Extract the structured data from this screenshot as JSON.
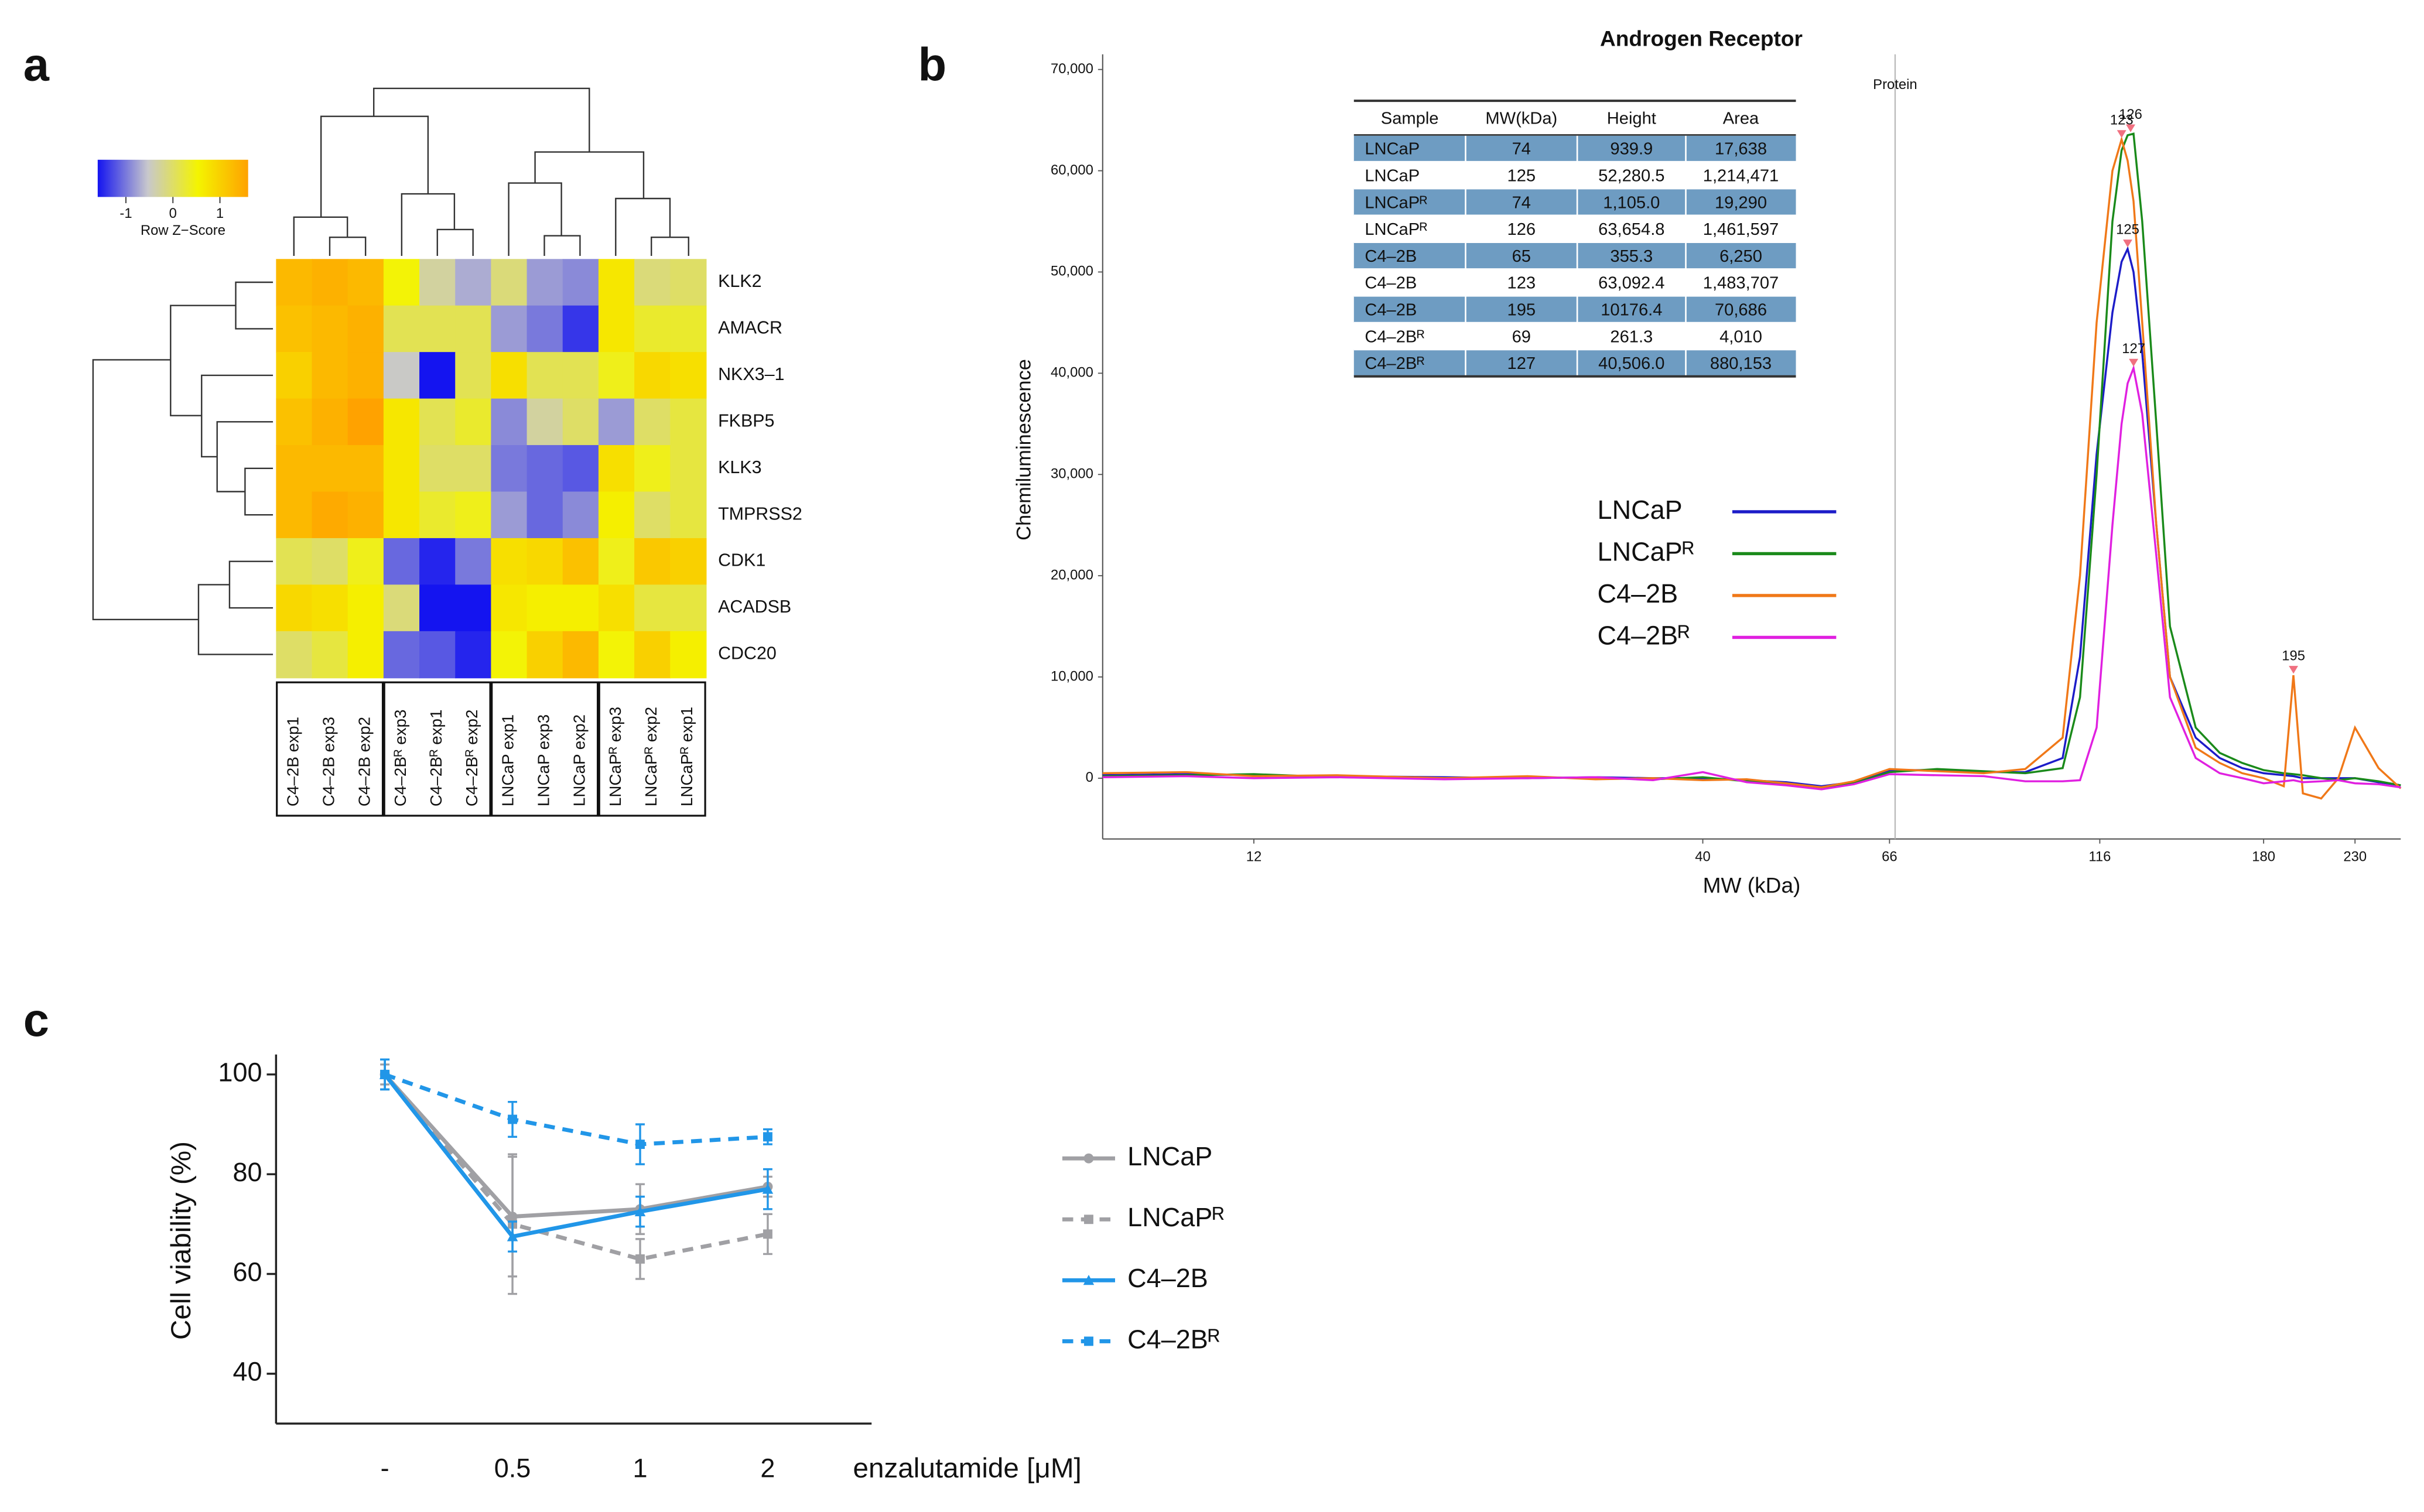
{
  "chart_data": [
    {
      "type": "heatmap",
      "panel": "a",
      "rows": [
        "KLK2",
        "AMACR",
        "NKX3–1",
        "FKBP5",
        "KLK3",
        "TMPRSS2",
        "CDK1",
        "ACADSB",
        "CDC20"
      ],
      "columns": [
        "C4–2B exp1",
        "C4–2B exp3",
        "C4–2B exp2",
        "C4–2Bᴿ exp3",
        "C4–2Bᴿ exp1",
        "C4–2Bᴿ exp2",
        "LNCaP exp1",
        "LNCaP exp3",
        "LNCaP exp2",
        "LNCaPᴿ exp3",
        "LNCaPᴿ exp2",
        "LNCaPᴿ exp1"
      ],
      "values": [
        [
          1.3,
          1.4,
          1.3,
          0.5,
          -0.3,
          -0.7,
          -0.1,
          -0.8,
          -0.9,
          0.7,
          -0.1,
          0
        ],
        [
          1.2,
          1.3,
          1.4,
          0.1,
          0.1,
          0.1,
          -0.8,
          -1.0,
          -1.4,
          0.7,
          0.3,
          0.3
        ],
        [
          1.0,
          1.3,
          1.4,
          -0.5,
          -1.6,
          0.1,
          0.8,
          0.1,
          0.1,
          0.4,
          0.9,
          0.8
        ],
        [
          1.2,
          1.4,
          1.6,
          0.7,
          0.1,
          0.3,
          -0.9,
          -0.3,
          0,
          -0.8,
          0,
          0.2
        ],
        [
          1.3,
          1.3,
          1.3,
          0.7,
          0,
          0,
          -1.0,
          -1.1,
          -1.2,
          0.8,
          0.4,
          0.2
        ],
        [
          1.3,
          1.5,
          1.4,
          0.7,
          0.3,
          0.4,
          -0.8,
          -1.1,
          -0.9,
          0.6,
          0,
          0.2
        ],
        [
          0.1,
          0,
          0.4,
          -1.1,
          -1.5,
          -1.0,
          0.8,
          0.9,
          1.2,
          0.4,
          1.1,
          1.0
        ],
        [
          0.9,
          0.8,
          0.6,
          -0.1,
          -1.7,
          -1.6,
          0.7,
          0.6,
          0.6,
          0.8,
          0.2,
          0.2
        ],
        [
          0,
          0.2,
          0.6,
          -1.1,
          -1.2,
          -1.5,
          0.5,
          1.0,
          1.3,
          0.5,
          1.0,
          0.6
        ]
      ],
      "zlim": [
        -1.6,
        1.6
      ],
      "colors": [
        "#1414f0",
        "#c8c8cc",
        "#f4f400",
        "#ffa200"
      ],
      "colorbar_title": "Row Z−Score",
      "colorbar_ticks": [
        -1,
        0,
        1
      ]
    },
    {
      "type": "line",
      "panel": "b",
      "title": "Androgen Receptor",
      "xlabel": "MW (kDa)",
      "ylabel": "Chemiluminescence",
      "xscale": "log",
      "xlim": [
        8,
        260
      ],
      "xticks": [
        12,
        40,
        66,
        116,
        180,
        230
      ],
      "ylim": [
        -6000,
        71500
      ],
      "yticks": [
        0,
        {
          "value": 10000,
          "label": "10,000"
        },
        {
          "value": 20000,
          "label": "20,000"
        },
        {
          "value": 30000,
          "label": "30,000"
        },
        {
          "value": 40000,
          "label": "40,000"
        },
        {
          "value": 50000,
          "label": "50,000"
        },
        {
          "value": 60000,
          "label": "60,000"
        },
        {
          "value": 70000,
          "label": "70,000"
        }
      ],
      "x": [
        8,
        10,
        12,
        15,
        20,
        25,
        30,
        35,
        40,
        45,
        50,
        55,
        60,
        66,
        75,
        85,
        95,
        105,
        110,
        115,
        120,
        123,
        125,
        127,
        130,
        135,
        140,
        150,
        160,
        170,
        180,
        190,
        195,
        200,
        210,
        220,
        230,
        245,
        260
      ],
      "series": [
        {
          "name": "LNCaP",
          "color": "#1c1cc8",
          "values": [
            300,
            400,
            300,
            200,
            100,
            0,
            100,
            0,
            0,
            -200,
            -400,
            -800,
            -400,
            800,
            800,
            600,
            600,
            2000,
            12000,
            32000,
            46000,
            51000,
            52280,
            50000,
            42000,
            25000,
            10000,
            4000,
            2000,
            1000,
            500,
            300,
            200,
            0,
            0,
            0,
            0,
            -400,
            -700
          ]
        },
        {
          "name": "LNCaPᴿ",
          "color": "#1a8a1a",
          "values": [
            200,
            300,
            400,
            100,
            0,
            100,
            0,
            -100,
            100,
            -300,
            -600,
            -1000,
            -500,
            600,
            900,
            700,
            500,
            1000,
            8000,
            30000,
            55000,
            62000,
            63500,
            63654,
            55000,
            35000,
            15000,
            5000,
            2500,
            1500,
            800,
            500,
            400,
            300,
            0,
            -200,
            0,
            -300,
            -700
          ]
        },
        {
          "name": "C4–2B",
          "color": "#f07818",
          "values": [
            500,
            600,
            200,
            300,
            0,
            200,
            -100,
            0,
            -200,
            -100,
            -500,
            -900,
            -300,
            900,
            700,
            500,
            900,
            4000,
            20000,
            45000,
            60000,
            63092,
            61000,
            57000,
            45000,
            25000,
            10000,
            3000,
            1500,
            500,
            0,
            -800,
            10176,
            -1500,
            -2000,
            0,
            5000,
            1000,
            -1000
          ]
        },
        {
          "name": "C4–2Bᴿ",
          "color": "#e020e0",
          "values": [
            100,
            200,
            0,
            100,
            -100,
            0,
            100,
            -200,
            600,
            -400,
            -700,
            -1100,
            -600,
            400,
            300,
            200,
            -300,
            -300,
            -200,
            5000,
            25000,
            35000,
            39000,
            40506,
            36000,
            22000,
            8000,
            2000,
            500,
            0,
            -500,
            -300,
            -200,
            -400,
            -300,
            -200,
            -500,
            -600,
            -900
          ]
        }
      ],
      "annotations": [
        {
          "text": "Protein",
          "x": 67
        }
      ],
      "peaks": [
        {
          "x": 123,
          "y": 63092
        },
        {
          "x": 126,
          "y": 63654
        },
        {
          "x": 125,
          "y": 52280
        },
        {
          "x": 127,
          "y": 40506
        },
        {
          "x": 195,
          "y": 10176
        }
      ],
      "table": {
        "columns": [
          "Sample",
          "MW(kDa)",
          "Height",
          "Area"
        ],
        "rows": [
          [
            "LNCaP",
            "74",
            "939.9",
            "17,638"
          ],
          [
            "LNCaP",
            "125",
            "52,280.5",
            "1,214,471"
          ],
          [
            "LNCaPᴿ",
            "74",
            "1,105.0",
            "19,290"
          ],
          [
            "LNCaPᴿ",
            "126",
            "63,654.8",
            "1,461,597"
          ],
          [
            "C4–2B",
            "65",
            "355.3",
            "6,250"
          ],
          [
            "C4–2B",
            "123",
            "63,092.4",
            "1,483,707"
          ],
          [
            "C4–2B",
            "195",
            "10176.4",
            "70,686"
          ],
          [
            "C4–2Bᴿ",
            "69",
            "261.3",
            "4,010"
          ],
          [
            "C4–2Bᴿ",
            "127",
            "40,506.0",
            "880,153"
          ]
        ]
      }
    },
    {
      "type": "line",
      "panel": "c",
      "xlabel": "enzalutamide [μM]",
      "ylabel": "Cell viability (%)",
      "categories": [
        "-",
        "0.5",
        "1",
        "2"
      ],
      "ylim": [
        30,
        104
      ],
      "yticks": [
        40,
        60,
        80,
        100
      ],
      "series": [
        {
          "name": "LNCaP",
          "color": "#a0a0a4",
          "dash": false,
          "marker": "circle",
          "values": [
            100,
            71.5,
            73,
            77.5
          ],
          "errors": [
            2,
            12,
            5,
            2
          ]
        },
        {
          "name": "LNCaPᴿ",
          "color": "#a0a0a4",
          "dash": true,
          "marker": "square",
          "values": [
            100,
            70,
            63,
            68
          ],
          "errors": [
            3,
            14,
            4,
            4
          ]
        },
        {
          "name": "C4–2B",
          "color": "#2196e8",
          "dash": false,
          "marker": "triangle",
          "values": [
            100,
            67.5,
            72.5,
            77
          ],
          "errors": [
            3,
            3,
            3,
            4
          ]
        },
        {
          "name": "C4–2Bᴿ",
          "color": "#2196e8",
          "dash": true,
          "marker": "square",
          "values": [
            100,
            91,
            86,
            87.5
          ],
          "errors": [
            3,
            3.5,
            4,
            1.5
          ]
        }
      ]
    }
  ]
}
